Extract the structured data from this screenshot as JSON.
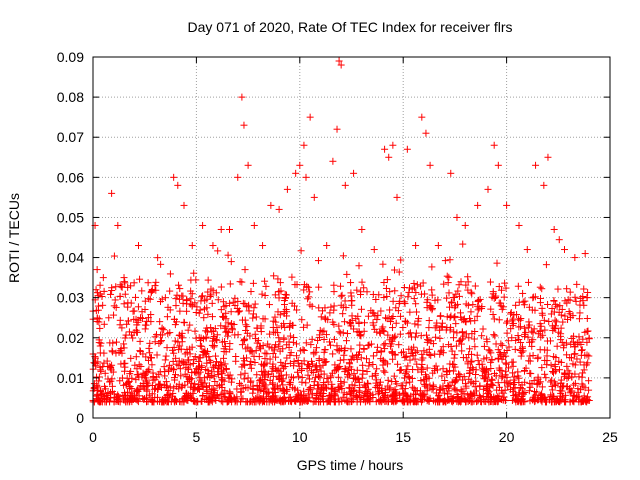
{
  "chart_data": {
    "type": "scatter",
    "title": "Day 071 of 2020, Rate Of TEC Index for receiver flrs",
    "xlabel": "GPS time / hours",
    "ylabel": "ROTI / TECUs",
    "xlim": [
      0,
      25
    ],
    "ylim": [
      0,
      0.09
    ],
    "x_ticks": [
      "0",
      "5",
      "10",
      "15",
      "20",
      "25"
    ],
    "y_ticks": [
      "0",
      "0.01",
      "0.02",
      "0.03",
      "0.04",
      "0.05",
      "0.06",
      "0.07",
      "0.08",
      "0.09"
    ],
    "grid": true,
    "legend": "none",
    "marker": "plus",
    "series_color": "#ff0000",
    "note": "dense scatter of ROTI samples from 0 to 24 h; most values between 0.003 and 0.03",
    "series": [
      {
        "points": [
          [
            0.1,
            0.048
          ],
          [
            0.2,
            0.037
          ],
          [
            0.5,
            0.035
          ],
          [
            0.9,
            0.056
          ],
          [
            1.2,
            0.048
          ],
          [
            1.5,
            0.035
          ],
          [
            2.2,
            0.043
          ],
          [
            3.0,
            0.033
          ],
          [
            3.5,
            0.03
          ],
          [
            3.9,
            0.06
          ],
          [
            4.1,
            0.058
          ],
          [
            4.4,
            0.053
          ],
          [
            4.8,
            0.043
          ],
          [
            5.3,
            0.048
          ],
          [
            5.8,
            0.043
          ],
          [
            6.2,
            0.047
          ],
          [
            6.6,
            0.047
          ],
          [
            7.0,
            0.06
          ],
          [
            7.2,
            0.08
          ],
          [
            7.3,
            0.073
          ],
          [
            7.5,
            0.063
          ],
          [
            7.8,
            0.048
          ],
          [
            8.2,
            0.043
          ],
          [
            8.6,
            0.053
          ],
          [
            9.0,
            0.052
          ],
          [
            9.4,
            0.057
          ],
          [
            9.8,
            0.061
          ],
          [
            10.0,
            0.063
          ],
          [
            10.2,
            0.068
          ],
          [
            10.3,
            0.06
          ],
          [
            10.5,
            0.075
          ],
          [
            10.7,
            0.055
          ],
          [
            11.3,
            0.043
          ],
          [
            11.6,
            0.064
          ],
          [
            11.8,
            0.072
          ],
          [
            11.9,
            0.089
          ],
          [
            12.0,
            0.088
          ],
          [
            12.2,
            0.058
          ],
          [
            12.6,
            0.061
          ],
          [
            13.0,
            0.047
          ],
          [
            13.6,
            0.042
          ],
          [
            14.1,
            0.067
          ],
          [
            14.3,
            0.065
          ],
          [
            14.5,
            0.068
          ],
          [
            14.7,
            0.055
          ],
          [
            15.2,
            0.067
          ],
          [
            15.6,
            0.043
          ],
          [
            15.9,
            0.075
          ],
          [
            16.1,
            0.071
          ],
          [
            16.3,
            0.063
          ],
          [
            16.7,
            0.043
          ],
          [
            17.3,
            0.061
          ],
          [
            17.6,
            0.05
          ],
          [
            18.0,
            0.048
          ],
          [
            18.6,
            0.053
          ],
          [
            19.1,
            0.057
          ],
          [
            19.4,
            0.068
          ],
          [
            19.6,
            0.063
          ],
          [
            20.0,
            0.053
          ],
          [
            20.6,
            0.048
          ],
          [
            21.0,
            0.042
          ],
          [
            21.4,
            0.063
          ],
          [
            21.8,
            0.058
          ],
          [
            22.0,
            0.065
          ],
          [
            22.3,
            0.047
          ],
          [
            22.8,
            0.042
          ],
          [
            23.3,
            0.04
          ],
          [
            23.8,
            0.041
          ],
          [
            23.9,
            0.03
          ]
        ]
      }
    ]
  }
}
